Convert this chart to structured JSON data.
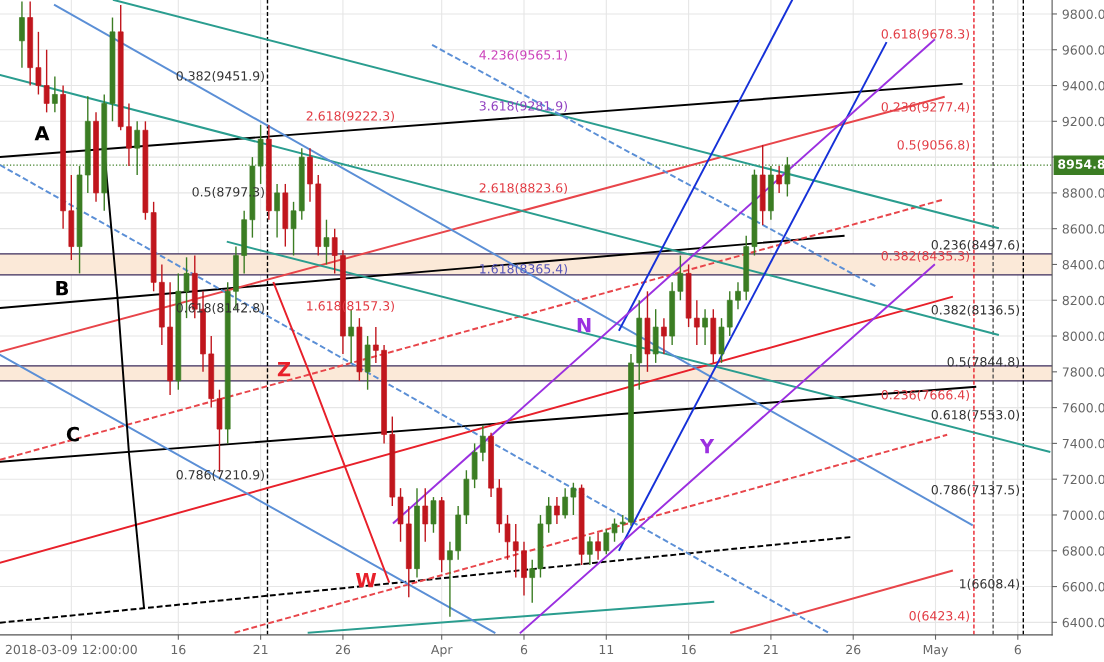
{
  "chart_data": {
    "type": "candlestick",
    "x": [
      "2018-03-06T12:00",
      "2018-03-07T00:00",
      "2018-03-07T12:00",
      "2018-03-08T00:00",
      "2018-03-08T12:00",
      "2018-03-09T00:00",
      "2018-03-09T12:00",
      "2018-03-10T00:00",
      "2018-03-10T12:00",
      "2018-03-11T00:00",
      "2018-03-11T12:00",
      "2018-03-12T00:00",
      "2018-03-12T12:00",
      "2018-03-13T00:00",
      "2018-03-13T12:00",
      "2018-03-14T00:00",
      "2018-03-14T12:00",
      "2018-03-15T00:00",
      "2018-03-15T12:00",
      "2018-03-16T00:00",
      "2018-03-16T12:00",
      "2018-03-17T00:00",
      "2018-03-17T12:00",
      "2018-03-18T00:00",
      "2018-03-18T12:00",
      "2018-03-19T00:00",
      "2018-03-19T12:00",
      "2018-03-20T00:00",
      "2018-03-20T12:00",
      "2018-03-21T00:00",
      "2018-03-21T12:00",
      "2018-03-22T00:00",
      "2018-03-22T12:00",
      "2018-03-23T00:00",
      "2018-03-23T12:00",
      "2018-03-24T00:00",
      "2018-03-24T12:00",
      "2018-03-25T00:00",
      "2018-03-25T12:00",
      "2018-03-26T00:00",
      "2018-03-26T12:00",
      "2018-03-27T00:00",
      "2018-03-27T12:00",
      "2018-03-28T00:00",
      "2018-03-28T12:00",
      "2018-03-29T00:00",
      "2018-03-29T12:00",
      "2018-03-30T00:00",
      "2018-03-30T12:00",
      "2018-03-31T00:00",
      "2018-03-31T12:00",
      "2018-04-01T00:00",
      "2018-04-01T12:00",
      "2018-04-02T00:00",
      "2018-04-02T12:00",
      "2018-04-03T00:00",
      "2018-04-03T12:00",
      "2018-04-04T00:00",
      "2018-04-04T12:00",
      "2018-04-05T00:00",
      "2018-04-05T12:00",
      "2018-04-06T00:00",
      "2018-04-06T12:00",
      "2018-04-07T00:00",
      "2018-04-07T12:00",
      "2018-04-08T00:00",
      "2018-04-08T12:00",
      "2018-04-09T00:00",
      "2018-04-09T12:00",
      "2018-04-10T00:00",
      "2018-04-10T12:00",
      "2018-04-11T00:00",
      "2018-04-11T12:00",
      "2018-04-12T00:00",
      "2018-04-12T12:00",
      "2018-04-13T00:00",
      "2018-04-13T12:00",
      "2018-04-14T00:00",
      "2018-04-14T12:00",
      "2018-04-15T00:00",
      "2018-04-15T12:00",
      "2018-04-16T00:00",
      "2018-04-16T12:00",
      "2018-04-17T00:00",
      "2018-04-17T12:00",
      "2018-04-18T00:00",
      "2018-04-18T12:00",
      "2018-04-19T00:00",
      "2018-04-19T12:00",
      "2018-04-20T00:00",
      "2018-04-20T12:00",
      "2018-04-21T00:00",
      "2018-04-21T12:00",
      "2018-04-22T00:00"
    ],
    "ohlc": [
      [
        9650,
        9870,
        9500,
        9780
      ],
      [
        9780,
        9870,
        9400,
        9500
      ],
      [
        9500,
        9700,
        9350,
        9400
      ],
      [
        9400,
        9600,
        9250,
        9300
      ],
      [
        9300,
        9450,
        9250,
        9350
      ],
      [
        9350,
        9400,
        8600,
        8700
      ],
      [
        8700,
        8900,
        8425,
        8500
      ],
      [
        8500,
        8950,
        8350,
        8900
      ],
      [
        8900,
        9340,
        8800,
        9200
      ],
      [
        9200,
        9250,
        8750,
        8800
      ],
      [
        8800,
        9350,
        8700,
        9300
      ],
      [
        9300,
        9780,
        9200,
        9700
      ],
      [
        9700,
        9850,
        9150,
        9170
      ],
      [
        9170,
        9300,
        8950,
        9050
      ],
      [
        9050,
        9200,
        8900,
        9150
      ],
      [
        9150,
        9200,
        8650,
        8690
      ],
      [
        8690,
        8750,
        8250,
        8300
      ],
      [
        8300,
        8400,
        7950,
        8050
      ],
      [
        8050,
        8300,
        7670,
        7750
      ],
      [
        7750,
        8350,
        7700,
        8250
      ],
      [
        8250,
        8440,
        8100,
        8350
      ],
      [
        8350,
        8450,
        8100,
        8150
      ],
      [
        8150,
        8250,
        7800,
        7900
      ],
      [
        7900,
        8000,
        7600,
        7650
      ],
      [
        7650,
        7700,
        7240,
        7480
      ],
      [
        7480,
        8300,
        7400,
        8250
      ],
      [
        8250,
        8500,
        8150,
        8450
      ],
      [
        8450,
        8700,
        8350,
        8650
      ],
      [
        8650,
        9000,
        8550,
        8950
      ],
      [
        8950,
        9180,
        8850,
        9100
      ],
      [
        9100,
        9180,
        8650,
        8700
      ],
      [
        8700,
        8850,
        8550,
        8800
      ],
      [
        8800,
        8850,
        8500,
        8600
      ],
      [
        8600,
        8750,
        8450,
        8700
      ],
      [
        8700,
        9050,
        8650,
        9000
      ],
      [
        9000,
        9050,
        8750,
        8850
      ],
      [
        8850,
        8900,
        8450,
        8500
      ],
      [
        8500,
        8650,
        8400,
        8550
      ],
      [
        8550,
        8600,
        8350,
        8450
      ],
      [
        8450,
        8480,
        7900,
        8000
      ],
      [
        8000,
        8150,
        7850,
        8050
      ],
      [
        8050,
        8100,
        7750,
        7800
      ],
      [
        7800,
        8000,
        7700,
        7950
      ],
      [
        7950,
        8050,
        7850,
        7920
      ],
      [
        7920,
        7950,
        7400,
        7450
      ],
      [
        7450,
        7550,
        7050,
        7100
      ],
      [
        7100,
        7150,
        6850,
        6950
      ],
      [
        6950,
        7050,
        6540,
        6700
      ],
      [
        6700,
        7150,
        6650,
        7050
      ],
      [
        7050,
        7150,
        6850,
        6950
      ],
      [
        6950,
        7100,
        6900,
        7080
      ],
      [
        7080,
        7100,
        6680,
        6750
      ],
      [
        6750,
        6850,
        6431,
        6800
      ],
      [
        6800,
        7050,
        6750,
        7000
      ],
      [
        7000,
        7250,
        6950,
        7200
      ],
      [
        7200,
        7400,
        7150,
        7350
      ],
      [
        7350,
        7500,
        7300,
        7440
      ],
      [
        7440,
        7460,
        7100,
        7150
      ],
      [
        7150,
        7200,
        6900,
        6950
      ],
      [
        6950,
        7000,
        6750,
        6850
      ],
      [
        6850,
        6950,
        6650,
        6800
      ],
      [
        6800,
        6850,
        6550,
        6650
      ],
      [
        6650,
        6750,
        6510,
        6700
      ],
      [
        6700,
        7000,
        6650,
        6950
      ],
      [
        6950,
        7100,
        6900,
        7050
      ],
      [
        7050,
        7100,
        6950,
        7000
      ],
      [
        7000,
        7150,
        6980,
        7100
      ],
      [
        7100,
        7180,
        7000,
        7150
      ],
      [
        7150,
        7170,
        6720,
        6780
      ],
      [
        6780,
        6880,
        6720,
        6850
      ],
      [
        6850,
        6900,
        6750,
        6800
      ],
      [
        6800,
        6920,
        6780,
        6900
      ],
      [
        6900,
        6980,
        6850,
        6950
      ],
      [
        6950,
        7000,
        6900,
        6960
      ],
      [
        6960,
        7900,
        6940,
        7850
      ],
      [
        7850,
        8200,
        7700,
        8100
      ],
      [
        8100,
        8250,
        7800,
        7900
      ],
      [
        7900,
        8150,
        7850,
        8050
      ],
      [
        8050,
        8100,
        7900,
        8000
      ],
      [
        8000,
        8300,
        7950,
        8250
      ],
      [
        8250,
        8450,
        8200,
        8350
      ],
      [
        8350,
        8400,
        8050,
        8100
      ],
      [
        8100,
        8200,
        7950,
        8050
      ],
      [
        8050,
        8150,
        7950,
        8100
      ],
      [
        8100,
        8150,
        7850,
        7900
      ],
      [
        7900,
        8100,
        7850,
        8050
      ],
      [
        8050,
        8250,
        8000,
        8200
      ],
      [
        8200,
        8300,
        8150,
        8250
      ],
      [
        8250,
        8560,
        8200,
        8500
      ],
      [
        8500,
        8930,
        8450,
        8900
      ],
      [
        8900,
        9068,
        8620,
        8700
      ],
      [
        8700,
        8950,
        8650,
        8900
      ],
      [
        8900,
        8950,
        8800,
        8850
      ],
      [
        8850,
        9000,
        8780,
        8954.8
      ]
    ],
    "xlim": [
      "2018-03-05T04:00",
      "2018-05-08T02:00"
    ],
    "xticks": [
      {
        "value": "2018-03-09T12:00",
        "label": "2018-03-09 12:00:00"
      },
      {
        "value": "2018-03-16",
        "label": "16"
      },
      {
        "value": "2018-03-21",
        "label": "21"
      },
      {
        "value": "2018-03-26",
        "label": "26"
      },
      {
        "value": "2018-04-01",
        "label": "Apr"
      },
      {
        "value": "2018-04-06",
        "label": "6"
      },
      {
        "value": "2018-04-11",
        "label": "11"
      },
      {
        "value": "2018-04-16",
        "label": "16"
      },
      {
        "value": "2018-04-21",
        "label": "21"
      },
      {
        "value": "2018-04-26",
        "label": "26"
      },
      {
        "value": "2018-05-01",
        "label": "May"
      },
      {
        "value": "2018-05-06",
        "label": "6"
      }
    ],
    "ylim": [
      6330,
      9878
    ],
    "yticks": [
      {
        "value": 6400,
        "label": "6400.0"
      },
      {
        "value": 6600,
        "label": "6600.0"
      },
      {
        "value": 6800,
        "label": "6800.0"
      },
      {
        "value": 7000,
        "label": "7000.0"
      },
      {
        "value": 7200,
        "label": "7200.0"
      },
      {
        "value": 7400,
        "label": "7400.0"
      },
      {
        "value": 7600,
        "label": "7600.0"
      },
      {
        "value": 7800,
        "label": "7800.0"
      },
      {
        "value": 8000,
        "label": "8000.0"
      },
      {
        "value": 8200,
        "label": "8200.0"
      },
      {
        "value": 8400,
        "label": "8400.0"
      },
      {
        "value": 8600,
        "label": "8600.0"
      },
      {
        "value": 8800,
        "label": "8800.0"
      },
      {
        "value": 9000,
        "label": null
      },
      {
        "value": 9200,
        "label": "9200.0"
      },
      {
        "value": 9400,
        "label": "9400.0"
      },
      {
        "value": 9600,
        "label": "9600.0"
      },
      {
        "value": 9800,
        "label": "9800.0"
      }
    ],
    "grid": true,
    "series": [
      {
        "type": "line",
        "x": [
          "2018-03-05T04:00",
          "2018-05-02T14:00"
        ],
        "values": [
          9001,
          9409
        ],
        "color": "#000000",
        "line_style": "solid"
      },
      {
        "type": "line",
        "x": [
          "2018-03-05T04:00",
          "2018-04-25T10:00"
        ],
        "values": [
          8157,
          8560
        ],
        "color": "#000000",
        "line_style": "solid"
      },
      {
        "type": "line",
        "x": [
          "2018-03-05T04:00",
          "2018-05-03T10:00"
        ],
        "values": [
          7297,
          7716
        ],
        "color": "#000000",
        "line_style": "solid"
      },
      {
        "type": "line",
        "x": [
          "2018-03-05T04:00",
          "2018-04-26T00:00"
        ],
        "values": [
          6398,
          6878
        ],
        "color": "#000000",
        "line_style": "dashed"
      },
      {
        "type": "line",
        "x": [
          "2018-03-05T04:00",
          "2018-05-02T00:00"
        ],
        "values": [
          6733,
          8219
        ],
        "color": "#e8202a",
        "line_style": "solid"
      },
      {
        "type": "line",
        "x": [
          "2018-03-05T04:00",
          "2018-05-01T12:00"
        ],
        "values": [
          7912,
          9336
        ],
        "color": "#e8454a",
        "line_style": "solid"
      },
      {
        "type": "line",
        "x": [
          "2018-03-05T04:00",
          "2018-05-01T10:00"
        ],
        "values": [
          7308,
          8761
        ],
        "color": "#e8454a",
        "line_style": "dashed"
      },
      {
        "type": "line",
        "x": [
          "2018-03-19T10:00",
          "2018-05-01T17:00"
        ],
        "values": [
          6342,
          7448
        ],
        "color": "#e8454a",
        "line_style": "dashed"
      },
      {
        "type": "line",
        "x": [
          "2018-04-18T14:00",
          "2018-05-02T00:00"
        ],
        "values": [
          6342,
          6688
        ],
        "color": "#e8454a",
        "line_style": "solid"
      },
      {
        "type": "line",
        "x": [
          "2018-03-12T02:00",
          "2018-05-04T19:00"
        ],
        "values": [
          9878,
          8604
        ],
        "color": "#2a9d8f",
        "line_style": "solid"
      },
      {
        "type": "line",
        "x": [
          "2018-03-05T04:00",
          "2018-05-04T19:00"
        ],
        "values": [
          9459,
          8007
        ],
        "color": "#2a9d8f",
        "line_style": "solid"
      },
      {
        "type": "line",
        "x": [
          "2018-03-19T00:00",
          "2018-05-07T22:00"
        ],
        "values": [
          8526,
          7353
        ],
        "color": "#2a9d8f",
        "line_style": "solid"
      },
      {
        "type": "line",
        "x": [
          "2018-03-23T22:00",
          "2018-04-17T12:00"
        ],
        "values": [
          6342,
          6515
        ],
        "color": "#2a9d8f",
        "line_style": "solid"
      },
      {
        "type": "line",
        "x": [
          "2018-03-08T12:00",
          "2018-05-03T05:00"
        ],
        "values": [
          9850,
          6945
        ],
        "color": "#5b8fd6",
        "line_style": "solid"
      },
      {
        "type": "line",
        "x": [
          "2018-03-05T04:00",
          "2018-04-04T05:00"
        ],
        "values": [
          7895,
          6342
        ],
        "color": "#5b8fd6",
        "line_style": "solid"
      },
      {
        "type": "line",
        "x": [
          "2018-03-31T10:00",
          "2018-04-27T10:00"
        ],
        "values": [
          9627,
          8275
        ],
        "color": "#5b8fd6",
        "line_style": "dashed"
      },
      {
        "type": "line",
        "x": [
          "2018-03-05T04:00",
          "2018-04-24T12:00"
        ],
        "values": [
          8956,
          6342
        ],
        "color": "#5b8fd6",
        "line_style": "dashed"
      },
      {
        "type": "line",
        "x": [
          "2018-04-11T19:00",
          "2018-04-22T07:00"
        ],
        "values": [
          8034,
          9878
        ],
        "color": "#1530d8",
        "line_style": "solid"
      },
      {
        "type": "line",
        "x": [
          "2018-04-11T19:00",
          "2018-04-28T00:00"
        ],
        "values": [
          6805,
          9638
        ],
        "color": "#1530d8",
        "line_style": "solid"
      },
      {
        "type": "line",
        "x": [
          "2018-03-29T02:00",
          "2018-04-30T22:00"
        ],
        "values": [
          6956,
          9655
        ],
        "color": "#9b30e0",
        "line_style": "solid"
      },
      {
        "type": "line",
        "x": [
          "2018-04-05T19:00",
          "2018-04-30T22:00"
        ],
        "values": [
          6342,
          8398
        ],
        "color": "#9b30e0",
        "line_style": "solid"
      },
      {
        "type": "line",
        "x": [
          "2018-03-11T12:00",
          "2018-03-12T07:00",
          "2018-03-13T00:00",
          "2018-03-13T22:00"
        ],
        "values": [
          9040,
          8230,
          7347,
          6481
        ],
        "color": "#000000",
        "line_style": "solid"
      },
      {
        "type": "line",
        "x": [
          "2018-03-21T19:00",
          "2018-03-23T22:00",
          "2018-03-26T02:00",
          "2018-03-28T19:00"
        ],
        "values": [
          8297,
          7805,
          7280,
          6627
        ],
        "color": "#e8202a",
        "line_style": "solid"
      }
    ],
    "bands": [
      {
        "axis": "y",
        "from": 8342,
        "to": 8459,
        "color": "#fbe9d8"
      },
      {
        "axis": "y",
        "from": 7750,
        "to": 7833,
        "color": "#fbe9d8"
      }
    ],
    "ref_lines": [
      {
        "axis": "y",
        "value": 8954.8,
        "label": "8954.8",
        "color": "#3b7d23",
        "line_style": "dotted"
      },
      {
        "axis": "y",
        "value": 8342,
        "color": "#3a2a5a",
        "line_style": "solid"
      },
      {
        "axis": "y",
        "value": 8459,
        "color": "#3a2a5a",
        "line_style": "solid"
      },
      {
        "axis": "y",
        "value": 7750,
        "color": "#3a2a5a",
        "line_style": "solid"
      },
      {
        "axis": "y",
        "value": 7833,
        "color": "#3a2a5a",
        "line_style": "solid"
      },
      {
        "axis": "x",
        "value": "2018-03-21T10:00",
        "color": "#000000",
        "line_style": "dashed"
      },
      {
        "axis": "x",
        "value": "2018-05-03T08:00",
        "color": "#e8202a",
        "line_style": "dashed"
      },
      {
        "axis": "x",
        "value": "2018-05-04T12:00",
        "color": "#555555",
        "line_style": "dashed"
      },
      {
        "axis": "x",
        "value": "2018-05-06T08:00",
        "color": "#000000",
        "line_style": "dashed"
      }
    ],
    "annotations": [
      "0.382(9451.9)",
      "2.618(9222.3)",
      "0.5(8797.3)",
      "0.618(8142.8)",
      "0.786(7210.9)",
      "1.618(8157.3)",
      "4.236(9565.1)",
      "3.618(9281.9)",
      "2.618(8823.6)",
      "1.618(8365.4)",
      "0.618(9678.3)",
      "0.236(9277.4)",
      "0.5(9056.8)",
      "0.236(8497.6)",
      "0.382(8435.3)",
      "0.382(8136.5)",
      "0.5(7844.8)",
      "0.236(7666.4)",
      "0.618(7553.0)",
      "0.786(7137.5)",
      "1(6608.4)",
      "0(6423.4)",
      "A",
      "B",
      "C",
      "Z",
      "W",
      "N",
      "Y"
    ]
  }
}
